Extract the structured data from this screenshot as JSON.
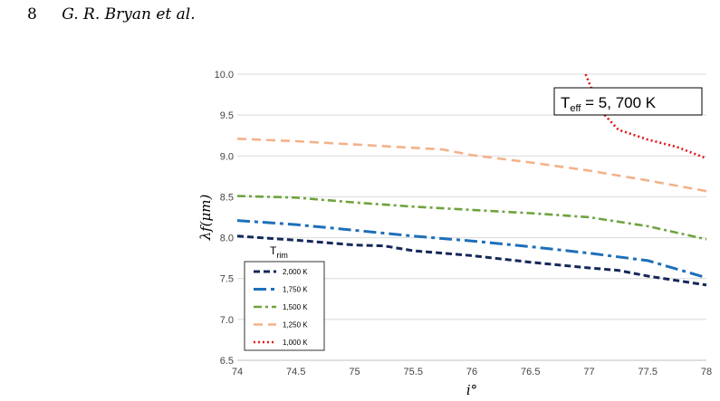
{
  "page": {
    "page_number": "8",
    "running_head": "G. R. Bryan et al."
  },
  "chart_data": {
    "type": "line",
    "xlabel": "i°",
    "ylabel": "λf(μm)",
    "xlim": [
      74,
      78
    ],
    "ylim": [
      6.5,
      10.0
    ],
    "x_ticks": [
      "74",
      "74.5",
      "75",
      "75.5",
      "76",
      "76.5",
      "77",
      "77.5",
      "78"
    ],
    "y_ticks": [
      "6.5",
      "7.0",
      "7.5",
      "8.0",
      "8.5",
      "9.0",
      "9.5",
      "10.0"
    ],
    "grid": "horizontal",
    "annotation": {
      "main": "T",
      "sub": "eff",
      "rest": " = 5, 700 K"
    },
    "legend": {
      "title_main": "T",
      "title_sub": "rim",
      "placement": "lower-left"
    },
    "series": [
      {
        "name": "2,000 K",
        "color": "#14285a",
        "style": "dashed",
        "x": [
          74,
          74.5,
          75,
          75.25,
          75.5,
          76,
          76.5,
          77,
          77.25,
          77.5,
          78
        ],
        "y": [
          8.02,
          7.97,
          7.91,
          7.9,
          7.84,
          7.78,
          7.7,
          7.63,
          7.6,
          7.53,
          7.42
        ]
      },
      {
        "name": "1,750 K",
        "color": "#1e6fba",
        "style": "dash-dot-long",
        "x": [
          74,
          74.5,
          75,
          75.5,
          76,
          76.5,
          77,
          77.5,
          78
        ],
        "y": [
          8.21,
          8.16,
          8.09,
          8.02,
          7.96,
          7.89,
          7.81,
          7.72,
          7.51
        ]
      },
      {
        "name": "1,500 K",
        "color": "#6ea33e",
        "style": "dash-dot",
        "x": [
          74,
          74.5,
          75,
          75.5,
          76,
          76.5,
          77,
          77.5,
          78
        ],
        "y": [
          8.51,
          8.49,
          8.43,
          8.38,
          8.34,
          8.3,
          8.25,
          8.14,
          7.98
        ]
      },
      {
        "name": "1,250 K",
        "color": "#f3b28a",
        "style": "long-dash",
        "x": [
          74,
          74.5,
          75,
          75.5,
          75.75,
          76,
          76.5,
          77,
          77.5,
          78
        ],
        "y": [
          9.21,
          9.18,
          9.14,
          9.1,
          9.08,
          9.01,
          8.92,
          8.82,
          8.7,
          8.57
        ]
      },
      {
        "name": "1,000 K",
        "color": "#e3161b",
        "style": "dotted",
        "x": [
          76.97,
          77.1,
          77.25,
          77.5,
          77.75,
          78
        ],
        "y": [
          10.0,
          9.55,
          9.32,
          9.2,
          9.11,
          8.97
        ]
      }
    ]
  }
}
